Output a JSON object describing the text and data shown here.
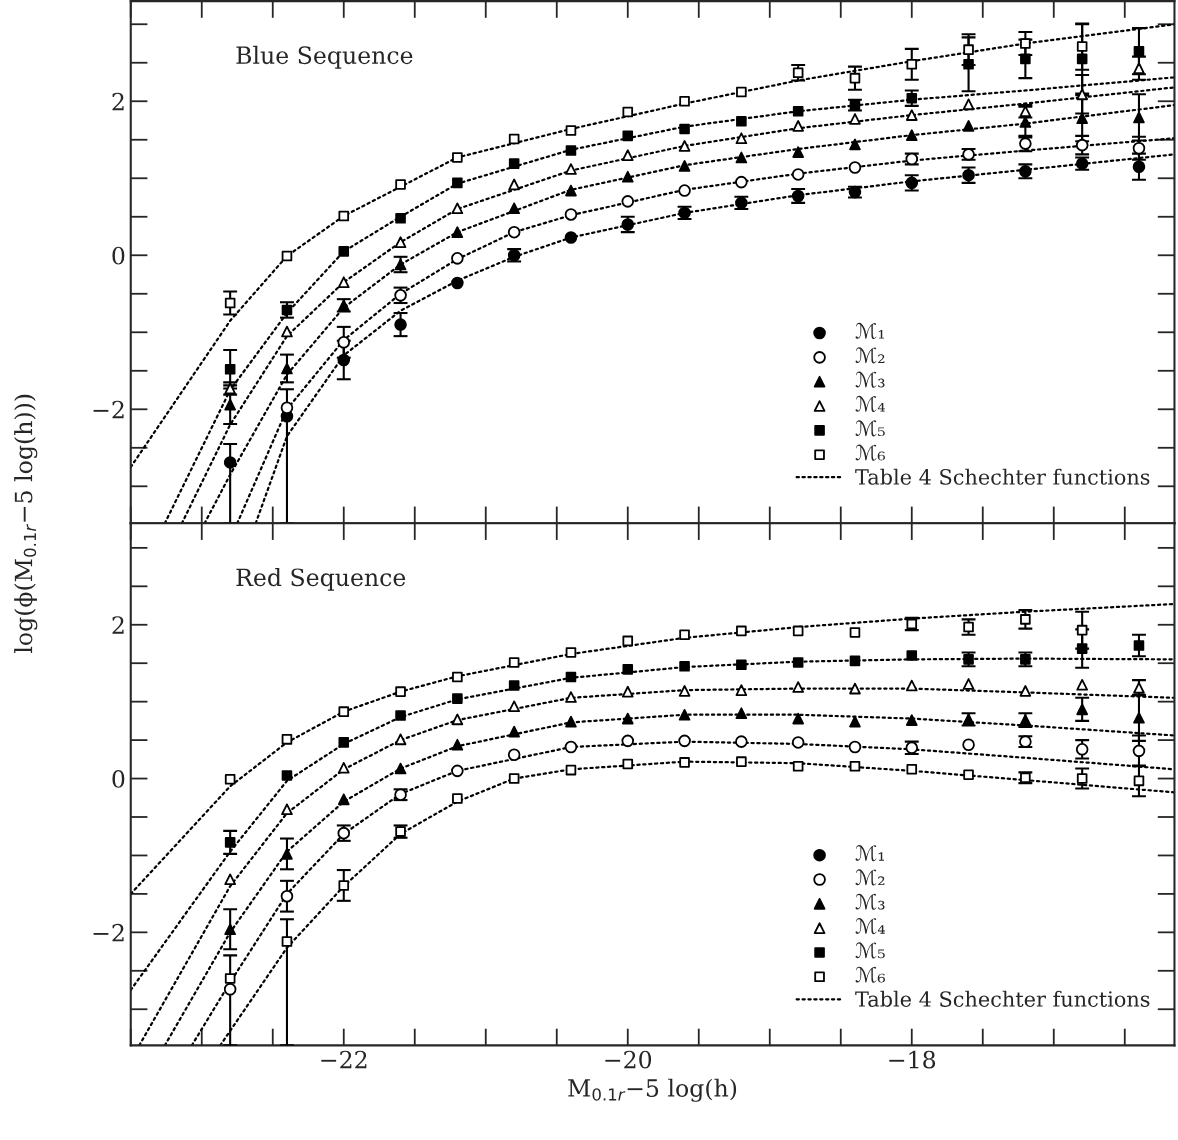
{
  "chart_data": [
    {
      "type": "scatter",
      "title": "Blue Sequence",
      "ylabel": "log(ϕ(M$_{0.1r}$−5 log(h)))",
      "tick_labels": "y",
      "legend": "bottom right",
      "xlim": [
        -23.5,
        -16.15
      ],
      "ylim": [
        -3.48,
        3.3
      ],
      "xticks": [
        -22,
        -20,
        -18
      ],
      "yticks": [
        {
          "value": -2,
          "label": "−2"
        },
        0,
        2
      ],
      "x": [
        -22.8,
        -22.4,
        -22.0,
        -21.6,
        -21.2,
        -20.8,
        -20.4,
        -20.0,
        -19.6,
        -19.2,
        -18.8,
        -18.4,
        -18.0,
        -17.6,
        -17.2,
        -16.8,
        -16.4
      ],
      "series": [
        {
          "name": "ℳ₁",
          "color": "#000000",
          "marker": "circle",
          "values": [
            -2.69,
            -2.09,
            -1.36,
            -0.9,
            -0.36,
            0.0,
            0.23,
            0.4,
            0.55,
            0.68,
            0.77,
            0.82,
            0.94,
            1.04,
            1.09,
            1.19,
            1.15
          ],
          "errors": [
            [
              -3.48,
              -2.45
            ],
            [
              -3.48,
              -1.74
            ],
            0.25,
            0.15,
            null,
            0.08,
            null,
            0.1,
            0.08,
            0.08,
            0.09,
            0.07,
            0.1,
            0.1,
            0.09,
            0.08,
            0.17
          ]
        },
        {
          "name": "ℳ₂",
          "color": "#000000",
          "marker": "circle",
          "values": [
            null,
            -1.98,
            -1.13,
            -0.52,
            -0.04,
            0.3,
            0.53,
            0.7,
            0.84,
            0.95,
            1.05,
            1.14,
            1.25,
            1.31,
            1.45,
            1.43,
            1.39
          ],
          "errors": [
            null,
            null,
            0.2,
            0.1,
            null,
            null,
            null,
            null,
            null,
            null,
            null,
            null,
            0.07,
            0.07,
            0.1,
            0.12,
            0.15
          ]
        },
        {
          "name": "ℳ₃",
          "color": "#000000",
          "marker": "triangle",
          "values": [
            -1.94,
            -1.47,
            -0.65,
            -0.12,
            0.3,
            0.61,
            0.84,
            1.02,
            1.16,
            1.27,
            1.34,
            1.44,
            1.56,
            1.68,
            1.73,
            1.78,
            1.79
          ],
          "errors": [
            0.25,
            0.18,
            0.08,
            0.1,
            null,
            null,
            null,
            null,
            null,
            null,
            null,
            null,
            null,
            null,
            0.2,
            0.3,
            0.3
          ]
        },
        {
          "name": "ℳ₄",
          "color": "#000000",
          "marker": "triangle",
          "values": [
            -1.73,
            -0.99,
            -0.35,
            0.17,
            0.61,
            0.92,
            1.12,
            1.3,
            1.42,
            1.52,
            1.68,
            1.77,
            1.82,
            1.96,
            1.87,
            2.09,
            2.43
          ],
          "errors": [
            0.08,
            null,
            null,
            null,
            null,
            null,
            null,
            null,
            null,
            null,
            null,
            null,
            null,
            null,
            0.08,
            0.25,
            0.15
          ]
        },
        {
          "name": "ℳ₅",
          "color": "#000000",
          "marker": "square",
          "values": [
            -1.48,
            -0.71,
            0.05,
            0.48,
            0.94,
            1.19,
            1.36,
            1.55,
            1.64,
            1.74,
            1.87,
            1.95,
            2.04,
            2.48,
            2.55,
            2.55,
            2.65
          ],
          "errors": [
            0.25,
            0.1,
            null,
            null,
            null,
            null,
            null,
            null,
            null,
            null,
            null,
            0.07,
            0.1,
            0.35,
            0.25,
            0.45,
            0.3
          ]
        },
        {
          "name": "ℳ₆",
          "color": "#000000",
          "marker": "square",
          "values": [
            -0.62,
            -0.01,
            0.51,
            0.92,
            1.27,
            1.51,
            1.62,
            1.86,
            2.0,
            2.12,
            2.37,
            2.3,
            2.48,
            2.67,
            2.75,
            2.71,
            null
          ],
          "errors": [
            0.15,
            null,
            null,
            null,
            null,
            null,
            null,
            null,
            null,
            null,
            0.1,
            0.15,
            0.2,
            0.2,
            0.15,
            0.3,
            null
          ]
        },
        {
          "name": "Table 4 Schechter functions",
          "type": "line",
          "color": "#000000",
          "line_style": "dotted",
          "x": [
            -23.5,
            -22.8,
            -22.4,
            -22.0,
            -21.2,
            -20.4,
            -19.6,
            -18.8,
            -18.0,
            -17.2,
            -16.15
          ],
          "values": [
            -2.75,
            -0.85,
            -0.01,
            0.51,
            1.27,
            1.64,
            1.97,
            2.27,
            2.52,
            2.75,
            3.0
          ]
        },
        {
          "type": "line",
          "color": "#000000",
          "line_style": "dotted",
          "x": [
            -23.26,
            -22.8,
            -22.4,
            -22.0,
            -21.6,
            -21.2,
            -20.4,
            -19.6,
            -18.8,
            -18.0,
            -17.2,
            -16.15
          ],
          "values": [
            -3.48,
            -1.75,
            -0.75,
            0.05,
            0.5,
            0.93,
            1.37,
            1.67,
            1.87,
            2.02,
            2.14,
            2.31
          ]
        },
        {
          "type": "line",
          "color": "#000000",
          "line_style": "dotted",
          "x": [
            -23.14,
            -22.8,
            -22.4,
            -22.0,
            -21.6,
            -21.2,
            -20.4,
            -19.6,
            -18.8,
            -18.0,
            -17.2,
            -16.15
          ],
          "values": [
            -3.48,
            -2.2,
            -1.05,
            -0.35,
            0.17,
            0.6,
            1.1,
            1.42,
            1.65,
            1.82,
            1.97,
            2.18
          ]
        },
        {
          "type": "line",
          "color": "#000000",
          "line_style": "dotted",
          "x": [
            -22.98,
            -22.8,
            -22.4,
            -22.0,
            -21.6,
            -21.2,
            -20.4,
            -19.6,
            -18.8,
            -18.0,
            -17.2,
            -16.15
          ],
          "values": [
            -3.48,
            -2.85,
            -1.55,
            -0.68,
            -0.12,
            0.3,
            0.85,
            1.17,
            1.38,
            1.56,
            1.71,
            1.95
          ]
        },
        {
          "type": "line",
          "color": "#000000",
          "line_style": "dotted",
          "x": [
            -22.75,
            -22.4,
            -22.0,
            -21.6,
            -21.2,
            -20.8,
            -20.4,
            -19.6,
            -18.8,
            -18.0,
            -17.2,
            -16.15
          ],
          "values": [
            -3.48,
            -2.0,
            -1.1,
            -0.5,
            -0.05,
            0.3,
            0.52,
            0.85,
            1.06,
            1.23,
            1.36,
            1.52
          ]
        },
        {
          "type": "line",
          "color": "#000000",
          "line_style": "dotted",
          "x": [
            -22.62,
            -22.4,
            -22.0,
            -21.6,
            -21.2,
            -20.8,
            -20.4,
            -19.6,
            -18.8,
            -18.0,
            -17.2,
            -16.15
          ],
          "values": [
            -3.48,
            -2.35,
            -1.3,
            -0.72,
            -0.33,
            -0.02,
            0.23,
            0.55,
            0.78,
            0.96,
            1.11,
            1.31
          ]
        }
      ]
    },
    {
      "type": "scatter",
      "title": "Red Sequence",
      "xlabel": "M$_{0.1r}$−5 log(h)",
      "legend": "bottom right",
      "xlim": [
        -23.5,
        -16.15
      ],
      "ylim": [
        -3.47,
        3.32
      ],
      "xticks": [
        {
          "value": -22,
          "label": "−22"
        },
        {
          "value": -20,
          "label": "−20"
        },
        {
          "value": -18,
          "label": "−18"
        }
      ],
      "yticks": [
        {
          "value": -2,
          "label": "−2"
        },
        0,
        2
      ],
      "x": [
        -22.8,
        -22.4,
        -22.0,
        -21.6,
        -21.2,
        -20.8,
        -20.4,
        -20.0,
        -19.6,
        -19.2,
        -18.8,
        -18.4,
        -18.0,
        -17.6,
        -17.2,
        -16.8,
        -16.4
      ],
      "series": [
        {
          "name": "ℳ₁",
          "color": "#000000",
          "marker": "circle",
          "values": [
            null,
            null,
            null,
            null,
            null,
            null,
            null,
            null,
            null,
            null,
            null,
            null,
            null,
            null,
            null,
            null,
            null
          ]
        },
        {
          "name": "ℳ₂",
          "color": "#000000",
          "marker": "circle",
          "values": [
            -2.74,
            -1.53,
            -0.71,
            -0.21,
            0.1,
            0.31,
            0.41,
            0.49,
            0.49,
            0.48,
            0.47,
            0.41,
            0.4,
            0.44,
            0.48,
            0.38,
            0.36
          ],
          "errors": [
            [
              -3.47,
              -2.3
            ],
            0.2,
            0.1,
            0.07,
            null,
            null,
            null,
            null,
            null,
            null,
            null,
            null,
            0.08,
            null,
            0.07,
            0.12,
            0.2
          ]
        },
        {
          "name": "ℳ₃",
          "color": "#000000",
          "marker": "triangle",
          "values": [
            -1.96,
            -0.98,
            -0.27,
            0.13,
            0.44,
            0.61,
            0.74,
            0.78,
            0.83,
            0.85,
            0.78,
            0.74,
            0.76,
            0.77,
            0.76,
            0.9,
            0.79
          ],
          "errors": [
            0.26,
            0.2,
            null,
            null,
            null,
            null,
            null,
            null,
            null,
            null,
            null,
            null,
            null,
            0.08,
            0.09,
            0.15,
            0.3
          ]
        },
        {
          "name": "ℳ₄",
          "color": "#000000",
          "marker": "triangle",
          "values": [
            -1.31,
            -0.4,
            0.14,
            0.51,
            0.77,
            0.94,
            1.06,
            1.13,
            1.14,
            1.15,
            1.19,
            1.17,
            1.21,
            1.23,
            1.14,
            1.22,
            1.18
          ],
          "errors": [
            null,
            null,
            null,
            null,
            null,
            null,
            null,
            null,
            null,
            null,
            null,
            null,
            null,
            null,
            null,
            null,
            0.1
          ]
        },
        {
          "name": "ℳ₅",
          "color": "#000000",
          "marker": "square",
          "values": [
            -0.83,
            0.04,
            0.47,
            0.82,
            1.04,
            1.21,
            1.32,
            1.42,
            1.46,
            1.48,
            1.51,
            1.53,
            1.6,
            1.55,
            1.55,
            1.69,
            1.73
          ],
          "errors": [
            0.15,
            null,
            null,
            null,
            null,
            null,
            null,
            null,
            null,
            null,
            null,
            null,
            null,
            0.09,
            0.09,
            0.25,
            0.14
          ]
        },
        {
          "name": "ℳ₆",
          "color": "#000000",
          "marker": "square",
          "values": [
            -0.01,
            0.51,
            0.87,
            1.13,
            1.32,
            1.51,
            1.64,
            1.79,
            1.87,
            1.92,
            1.92,
            1.9,
            2.01,
            1.97,
            2.07,
            1.93,
            null
          ],
          "errors": [
            null,
            null,
            null,
            null,
            null,
            null,
            null,
            null,
            null,
            null,
            null,
            null,
            0.08,
            0.1,
            0.12,
            0.24,
            null
          ]
        },
        {
          "color": "#000000",
          "marker": "square",
          "values": [
            -2.6,
            -2.12,
            -1.39,
            -0.69,
            -0.26,
            0.0,
            0.11,
            0.19,
            0.21,
            0.22,
            0.16,
            0.16,
            0.12,
            0.05,
            0.01,
            0.0,
            -0.03
          ],
          "errors": [
            null,
            [
              -3.47,
              -1.83
            ],
            0.2,
            0.08,
            null,
            null,
            null,
            null,
            null,
            null,
            null,
            null,
            null,
            null,
            0.07,
            0.13,
            0.2
          ]
        },
        {
          "name": "Table 4 Schechter functions",
          "type": "line",
          "color": "#000000",
          "line_style": "dotted",
          "x": [
            -23.5,
            -22.8,
            -22.4,
            -22.0,
            -21.6,
            -21.2,
            -20.4,
            -19.6,
            -18.8,
            -18.0,
            -17.2,
            -16.15
          ],
          "values": [
            -1.5,
            -0.1,
            0.47,
            0.87,
            1.13,
            1.33,
            1.62,
            1.83,
            1.97,
            2.08,
            2.17,
            2.27
          ]
        },
        {
          "type": "line",
          "color": "#000000",
          "line_style": "dotted",
          "x": [
            -23.5,
            -22.8,
            -22.4,
            -22.0,
            -21.6,
            -21.2,
            -20.4,
            -19.6,
            -18.8,
            -18.0,
            -17.2,
            -16.15
          ],
          "values": [
            -2.75,
            -0.95,
            -0.03,
            0.45,
            0.8,
            1.03,
            1.31,
            1.45,
            1.52,
            1.55,
            1.56,
            1.55
          ]
        },
        {
          "type": "line",
          "color": "#000000",
          "line_style": "dotted",
          "x": [
            -23.44,
            -22.8,
            -22.4,
            -22.0,
            -21.6,
            -21.2,
            -20.4,
            -19.6,
            -18.8,
            -18.0,
            -17.2,
            -16.15
          ],
          "values": [
            -3.47,
            -1.4,
            -0.45,
            0.12,
            0.5,
            0.76,
            1.05,
            1.15,
            1.17,
            1.17,
            1.12,
            1.05
          ]
        },
        {
          "type": "line",
          "color": "#000000",
          "line_style": "dotted",
          "x": [
            -23.26,
            -22.8,
            -22.4,
            -22.0,
            -21.6,
            -21.2,
            -20.4,
            -19.6,
            -18.8,
            -18.0,
            -17.2,
            -16.15
          ],
          "values": [
            -3.47,
            -2.0,
            -0.95,
            -0.3,
            0.13,
            0.42,
            0.73,
            0.83,
            0.83,
            0.78,
            0.69,
            0.56
          ]
        },
        {
          "type": "line",
          "color": "#000000",
          "line_style": "dotted",
          "x": [
            -23.07,
            -22.8,
            -22.4,
            -22.0,
            -21.6,
            -21.2,
            -20.4,
            -19.6,
            -18.8,
            -18.0,
            -17.2,
            -16.15
          ],
          "values": [
            -3.47,
            -2.65,
            -1.5,
            -0.72,
            -0.2,
            0.1,
            0.41,
            0.48,
            0.45,
            0.38,
            0.27,
            0.12
          ]
        },
        {
          "type": "line",
          "color": "#000000",
          "line_style": "dotted",
          "x": [
            -22.87,
            -22.4,
            -22.0,
            -21.6,
            -21.2,
            -20.8,
            -20.4,
            -19.6,
            -18.8,
            -18.0,
            -17.2,
            -16.15
          ],
          "values": [
            -3.47,
            -2.2,
            -1.4,
            -0.72,
            -0.3,
            0.0,
            0.12,
            0.22,
            0.2,
            0.1,
            -0.02,
            -0.18
          ]
        }
      ]
    }
  ]
}
